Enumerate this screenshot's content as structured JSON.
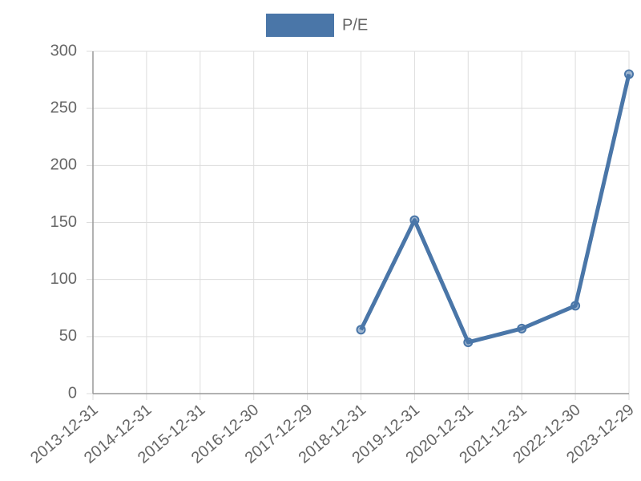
{
  "chart_data": {
    "type": "line",
    "categories": [
      "2013-12-31",
      "2014-12-31",
      "2015-12-31",
      "2016-12-30",
      "2017-12-29",
      "2018-12-31",
      "2019-12-31",
      "2020-12-31",
      "2021-12-31",
      "2022-12-30",
      "2023-12-29"
    ],
    "series": [
      {
        "name": "P/E",
        "color": "#4a76a8",
        "values": [
          null,
          null,
          null,
          null,
          null,
          56,
          152,
          45,
          57,
          77,
          280
        ]
      }
    ],
    "ylim": [
      0,
      300
    ],
    "yticks": [
      0,
      50,
      100,
      150,
      200,
      250,
      300
    ],
    "grid": true,
    "legend": "top"
  }
}
